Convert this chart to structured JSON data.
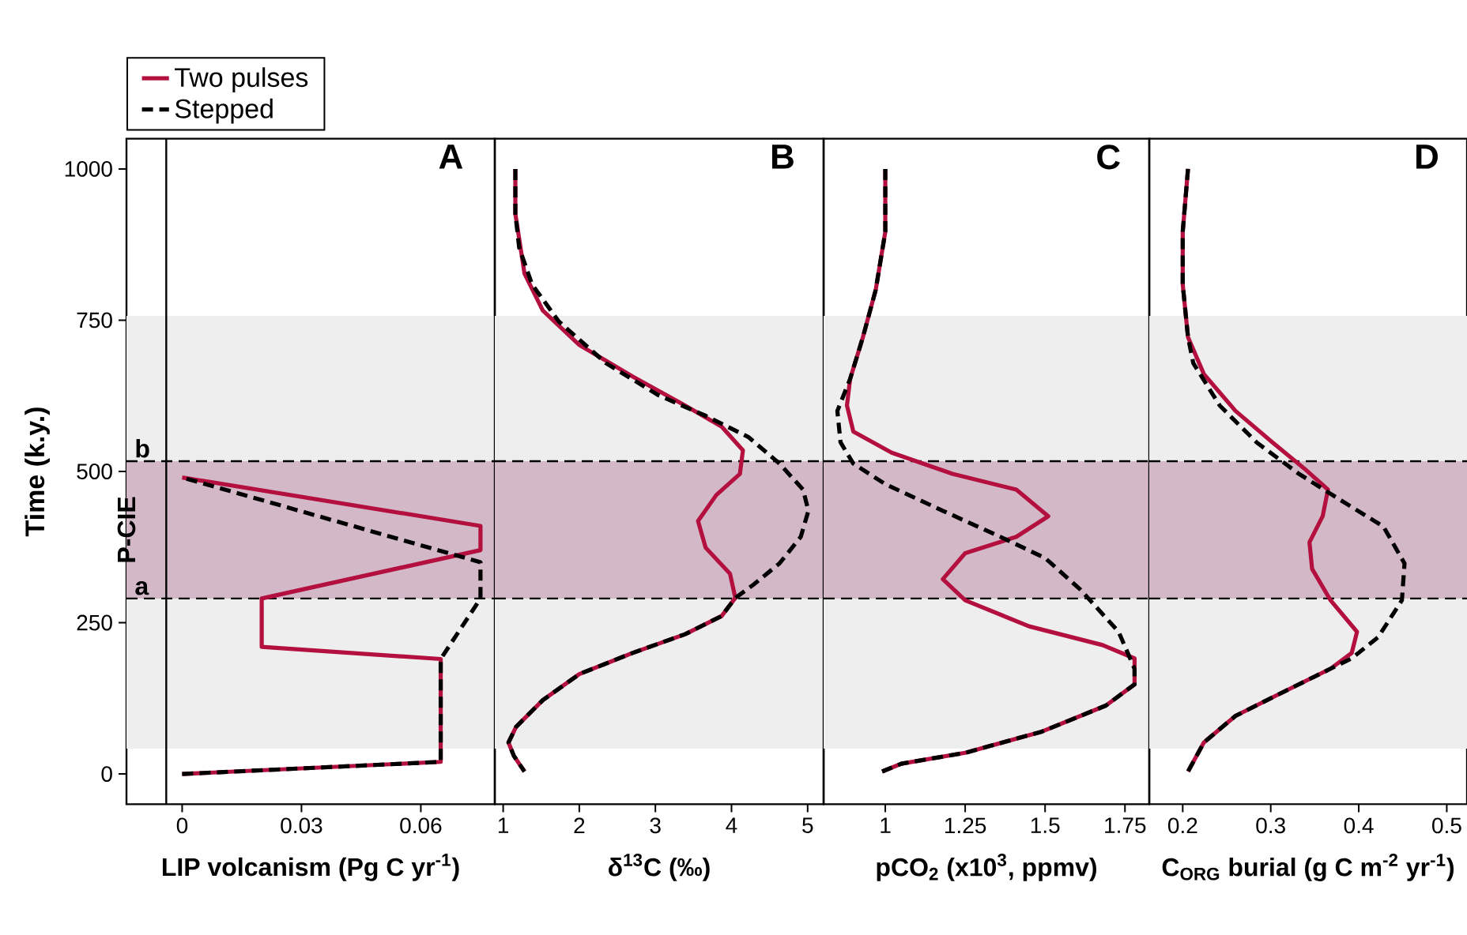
{
  "chart_data": [
    {
      "type": "line",
      "title": "A",
      "xlabel": "LIP volcanism (Pg C yr$^{-1}$)",
      "ylabel": "Time (k.y.)",
      "xlim": [
        -0.014,
        0.0786
      ],
      "ylim": [
        -50,
        1050
      ],
      "xticks": [
        0,
        0.03,
        0.06
      ],
      "yticks": [
        0,
        250,
        500,
        750,
        1000
      ],
      "legend": "top left",
      "bands": [
        {
          "axis": "y",
          "from": 42,
          "to": 757,
          "color": "#eeeeee"
        },
        {
          "axis": "y",
          "from": 290,
          "to": 517,
          "color": "#d3b9c7",
          "label": "P-CIE"
        }
      ],
      "ref_lines": [
        {
          "axis": "y",
          "value": 290,
          "label": "a",
          "color": "#000000",
          "line_style": "dashed"
        },
        {
          "axis": "y",
          "value": 517,
          "label": "b",
          "color": "#000000",
          "line_style": "dashed"
        },
        {
          "axis": "x",
          "value": -0.004,
          "color": "#000000",
          "line_style": "solid"
        }
      ],
      "series": [
        {
          "name": "Two pulses",
          "color": "#b3103f",
          "line_style": "solid",
          "x": [
            0,
            0.065,
            0.065,
            0.02,
            0.02,
            0.075,
            0.075,
            0
          ],
          "values": [
            0,
            20,
            190,
            210,
            290,
            370,
            410,
            490
          ]
        },
        {
          "name": "Stepped",
          "color": "#000000",
          "line_style": "dashed",
          "x": [
            0,
            0.065,
            0.065,
            0.075,
            0.075,
            0
          ],
          "values": [
            0,
            20,
            190,
            290,
            350,
            490
          ]
        }
      ]
    },
    {
      "type": "line",
      "title": "B",
      "xlabel": "δ$^{13}$C (‰)",
      "xlim": [
        0.89,
        5.21
      ],
      "ylim": [
        -50,
        1050
      ],
      "xticks": [
        1,
        2,
        3,
        4,
        5
      ],
      "tick_labels": "x",
      "bands": [
        {
          "axis": "y",
          "from": 42,
          "to": 757,
          "color": "#eeeeee"
        },
        {
          "axis": "y",
          "from": 290,
          "to": 517,
          "color": "#d3b9c7"
        }
      ],
      "ref_lines": [
        {
          "axis": "y",
          "value": 290,
          "color": "#000000",
          "line_style": "dashed"
        },
        {
          "axis": "y",
          "value": 517,
          "color": "#000000",
          "line_style": "dashed"
        }
      ],
      "series": [
        {
          "color": "#b3103f",
          "line_style": "solid",
          "x": [
            1.16,
            1.16,
            1.28,
            1.52,
            2.0,
            2.7,
            3.39,
            3.87,
            4.15,
            4.11,
            3.8,
            3.56,
            3.66,
            3.98,
            4.05,
            3.87,
            3.39,
            2.7,
            2.0,
            1.52,
            1.17,
            1.07,
            1.14,
            1.28
          ],
          "values": [
            1000,
            926,
            827,
            766,
            709,
            657,
            609,
            574,
            535,
            496,
            461,
            418,
            374,
            331,
            291,
            261,
            231,
            200,
            165,
            122,
            78,
            52,
            30,
            4
          ]
        },
        {
          "color": "#000000",
          "line_style": "dashed",
          "x": [
            1.16,
            1.16,
            1.21,
            1.38,
            1.73,
            2.35,
            3.04,
            3.66,
            4.22,
            4.63,
            4.94,
            5.01,
            4.91,
            4.63,
            4.29,
            4.05,
            3.87,
            3.39,
            2.7,
            2.0,
            1.52,
            1.17,
            1.07,
            1.14,
            1.28
          ],
          "values": [
            1000,
            926,
            870,
            809,
            748,
            679,
            626,
            592,
            557,
            513,
            470,
            435,
            392,
            348,
            313,
            291,
            261,
            231,
            200,
            165,
            122,
            78,
            52,
            30,
            4
          ]
        }
      ]
    },
    {
      "type": "line",
      "title": "C",
      "xlabel": "pCO$_{2}$ (x10$^{3}$, ppmv)",
      "xlim": [
        0.807,
        1.826
      ],
      "ylim": [
        -50,
        1050
      ],
      "xticks": [
        1,
        1.25,
        1.5,
        1.75
      ],
      "tick_labels": "x",
      "bands": [
        {
          "axis": "y",
          "from": 42,
          "to": 757,
          "color": "#eeeeee"
        },
        {
          "axis": "y",
          "from": 290,
          "to": 517,
          "color": "#d3b9c7"
        }
      ],
      "ref_lines": [
        {
          "axis": "y",
          "value": 290,
          "color": "#000000",
          "line_style": "dashed"
        },
        {
          "axis": "y",
          "value": 517,
          "color": "#000000",
          "line_style": "dashed"
        }
      ],
      "series": [
        {
          "color": "#b3103f",
          "line_style": "solid",
          "x": [
            1.0,
            1.0,
            0.97,
            0.93,
            0.89,
            0.88,
            0.9,
            1.02,
            1.21,
            1.41,
            1.51,
            1.41,
            1.25,
            1.18,
            1.25,
            1.45,
            1.68,
            1.78,
            1.78,
            1.69,
            1.49,
            1.25,
            1.05,
            0.99
          ],
          "values": [
            1000,
            896,
            800,
            722,
            653,
            609,
            566,
            531,
            496,
            470,
            426,
            392,
            365,
            322,
            287,
            244,
            213,
            191,
            148,
            113,
            70,
            35,
            17,
            4
          ]
        },
        {
          "color": "#000000",
          "line_style": "dashed",
          "x": [
            1.0,
            1.0,
            0.97,
            0.93,
            0.89,
            0.85,
            0.86,
            0.9,
            1.0,
            1.18,
            1.36,
            1.5,
            1.61,
            1.73,
            1.78,
            1.78,
            1.69,
            1.49,
            1.25,
            1.05,
            0.99
          ],
          "values": [
            1000,
            896,
            800,
            722,
            653,
            600,
            548,
            513,
            479,
            435,
            392,
            357,
            305,
            235,
            174,
            148,
            113,
            70,
            35,
            17,
            4
          ]
        }
      ]
    },
    {
      "type": "line",
      "title": "D",
      "xlabel": "C$_{ORG}$ burial (g C m$^{-2}$ yr$^{-1}$)",
      "xlim": [
        0.162,
        0.523
      ],
      "ylim": [
        -50,
        1050
      ],
      "xticks": [
        0.2,
        0.3,
        0.4,
        0.5
      ],
      "tick_labels": "x",
      "bands": [
        {
          "axis": "y",
          "from": 42,
          "to": 757,
          "color": "#eeeeee"
        },
        {
          "axis": "y",
          "from": 290,
          "to": 517,
          "color": "#d3b9c7"
        }
      ],
      "ref_lines": [
        {
          "axis": "y",
          "value": 290,
          "color": "#000000",
          "line_style": "dashed"
        },
        {
          "axis": "y",
          "value": 517,
          "color": "#000000",
          "line_style": "dashed"
        }
      ],
      "series": [
        {
          "color": "#b3103f",
          "line_style": "solid",
          "x": [
            0.206,
            0.2,
            0.2,
            0.206,
            0.224,
            0.26,
            0.302,
            0.338,
            0.365,
            0.359,
            0.344,
            0.347,
            0.368,
            0.398,
            0.392,
            0.368,
            0.308,
            0.26,
            0.224,
            0.206
          ],
          "values": [
            1000,
            896,
            809,
            722,
            661,
            600,
            548,
            505,
            470,
            426,
            383,
            339,
            287,
            235,
            200,
            174,
            131,
            96,
            52,
            4
          ]
        },
        {
          "color": "#000000",
          "line_style": "dashed",
          "x": [
            0.206,
            0.2,
            0.2,
            0.206,
            0.212,
            0.242,
            0.284,
            0.332,
            0.38,
            0.428,
            0.452,
            0.449,
            0.422,
            0.392,
            0.368,
            0.308,
            0.26,
            0.224,
            0.206
          ],
          "values": [
            1000,
            896,
            809,
            722,
            679,
            609,
            548,
            496,
            452,
            409,
            348,
            287,
            226,
            191,
            174,
            131,
            96,
            52,
            4
          ]
        }
      ]
    }
  ]
}
